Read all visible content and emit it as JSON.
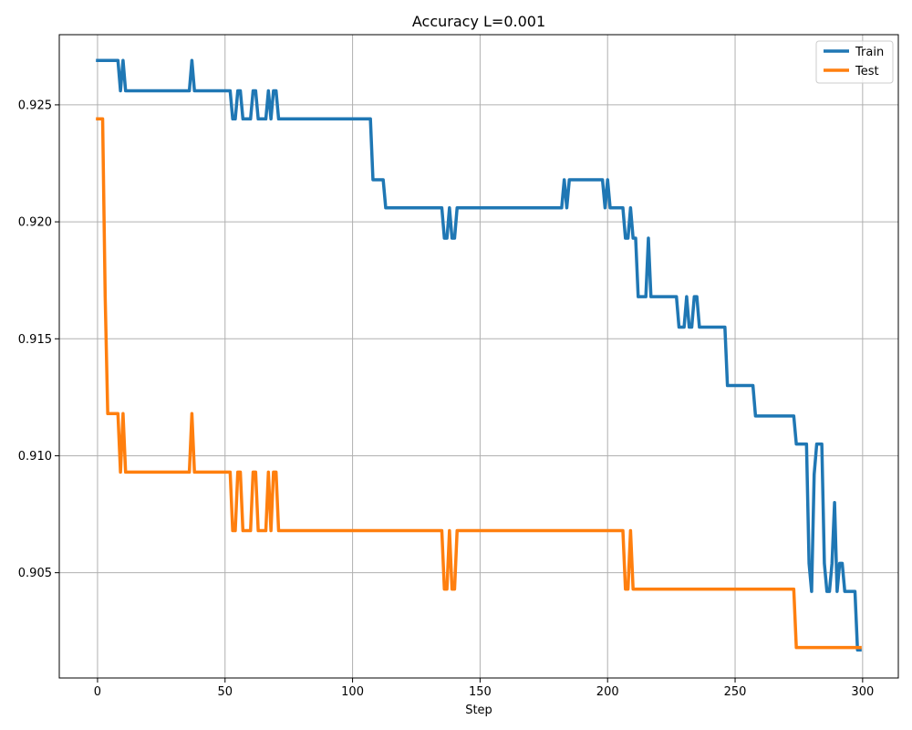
{
  "chart_data": {
    "type": "line",
    "title": "Accuracy L=0.001",
    "xlabel": "Step",
    "ylabel": "",
    "xlim": [
      -15,
      314
    ],
    "ylim": [
      0.9005,
      0.928
    ],
    "x_ticks": [
      0,
      50,
      100,
      150,
      200,
      250,
      300
    ],
    "y_ticks": [
      0.905,
      0.91,
      0.915,
      0.92,
      0.925
    ],
    "y_tick_labels": [
      "0.905",
      "0.910",
      "0.915",
      "0.920",
      "0.925"
    ],
    "grid": true,
    "legend_position": "top-right",
    "series": [
      {
        "name": "Train",
        "color": "#1f77b4",
        "points": [
          [
            0,
            0.9269
          ],
          [
            8,
            0.9269
          ],
          [
            9,
            0.9256
          ],
          [
            10,
            0.9269
          ],
          [
            11,
            0.9256
          ],
          [
            36,
            0.9256
          ],
          [
            37,
            0.9269
          ],
          [
            38,
            0.9256
          ],
          [
            52,
            0.9256
          ],
          [
            53,
            0.9244
          ],
          [
            54,
            0.9244
          ],
          [
            55,
            0.9256
          ],
          [
            56,
            0.9256
          ],
          [
            57,
            0.9244
          ],
          [
            60,
            0.9244
          ],
          [
            61,
            0.9256
          ],
          [
            62,
            0.9256
          ],
          [
            63,
            0.9244
          ],
          [
            66,
            0.9244
          ],
          [
            67,
            0.9256
          ],
          [
            68,
            0.9244
          ],
          [
            69,
            0.9256
          ],
          [
            70,
            0.9256
          ],
          [
            71,
            0.9244
          ],
          [
            107,
            0.9244
          ],
          [
            108,
            0.9218
          ],
          [
            112,
            0.9218
          ],
          [
            113,
            0.9206
          ],
          [
            135,
            0.9206
          ],
          [
            136,
            0.9193
          ],
          [
            137,
            0.9193
          ],
          [
            138,
            0.9206
          ],
          [
            139,
            0.9193
          ],
          [
            140,
            0.9193
          ],
          [
            141,
            0.9206
          ],
          [
            182,
            0.9206
          ],
          [
            183,
            0.9218
          ],
          [
            184,
            0.9206
          ],
          [
            185,
            0.9218
          ],
          [
            198,
            0.9218
          ],
          [
            199,
            0.9206
          ],
          [
            200,
            0.9218
          ],
          [
            201,
            0.9206
          ],
          [
            206,
            0.9206
          ],
          [
            207,
            0.9193
          ],
          [
            208,
            0.9193
          ],
          [
            209,
            0.9206
          ],
          [
            210,
            0.9193
          ],
          [
            211,
            0.9193
          ],
          [
            212,
            0.9168
          ],
          [
            215,
            0.9168
          ],
          [
            216,
            0.9193
          ],
          [
            217,
            0.9168
          ],
          [
            227,
            0.9168
          ],
          [
            228,
            0.9155
          ],
          [
            230,
            0.9155
          ],
          [
            231,
            0.9168
          ],
          [
            232,
            0.9155
          ],
          [
            233,
            0.9155
          ],
          [
            234,
            0.9168
          ],
          [
            235,
            0.9168
          ],
          [
            236,
            0.9155
          ],
          [
            246,
            0.9155
          ],
          [
            247,
            0.913
          ],
          [
            257,
            0.913
          ],
          [
            258,
            0.9117
          ],
          [
            273,
            0.9117
          ],
          [
            274,
            0.9105
          ],
          [
            278,
            0.9105
          ],
          [
            279,
            0.9054
          ],
          [
            280,
            0.9042
          ],
          [
            281,
            0.9092
          ],
          [
            282,
            0.9105
          ],
          [
            284,
            0.9105
          ],
          [
            285,
            0.9054
          ],
          [
            286,
            0.9042
          ],
          [
            287,
            0.9042
          ],
          [
            288,
            0.9054
          ],
          [
            289,
            0.908
          ],
          [
            290,
            0.9042
          ],
          [
            291,
            0.9054
          ],
          [
            292,
            0.9054
          ],
          [
            293,
            0.9042
          ],
          [
            297,
            0.9042
          ],
          [
            298,
            0.9017
          ],
          [
            299,
            0.9017
          ]
        ]
      },
      {
        "name": "Test",
        "color": "#ff7f0e",
        "points": [
          [
            0,
            0.9244
          ],
          [
            2,
            0.9244
          ],
          [
            3,
            0.9168
          ],
          [
            4,
            0.9118
          ],
          [
            8,
            0.9118
          ],
          [
            9,
            0.9093
          ],
          [
            10,
            0.9118
          ],
          [
            11,
            0.9093
          ],
          [
            36,
            0.9093
          ],
          [
            37,
            0.9118
          ],
          [
            38,
            0.9093
          ],
          [
            52,
            0.9093
          ],
          [
            53,
            0.9068
          ],
          [
            54,
            0.9068
          ],
          [
            55,
            0.9093
          ],
          [
            56,
            0.9093
          ],
          [
            57,
            0.9068
          ],
          [
            60,
            0.9068
          ],
          [
            61,
            0.9093
          ],
          [
            62,
            0.9093
          ],
          [
            63,
            0.9068
          ],
          [
            66,
            0.9068
          ],
          [
            67,
            0.9093
          ],
          [
            68,
            0.9068
          ],
          [
            69,
            0.9093
          ],
          [
            70,
            0.9093
          ],
          [
            71,
            0.9068
          ],
          [
            135,
            0.9068
          ],
          [
            136,
            0.9043
          ],
          [
            137,
            0.9043
          ],
          [
            138,
            0.9068
          ],
          [
            139,
            0.9043
          ],
          [
            140,
            0.9043
          ],
          [
            141,
            0.9068
          ],
          [
            206,
            0.9068
          ],
          [
            207,
            0.9043
          ],
          [
            208,
            0.9043
          ],
          [
            209,
            0.9068
          ],
          [
            210,
            0.9043
          ],
          [
            273,
            0.9043
          ],
          [
            274,
            0.9018
          ],
          [
            299,
            0.9018
          ]
        ]
      }
    ]
  }
}
